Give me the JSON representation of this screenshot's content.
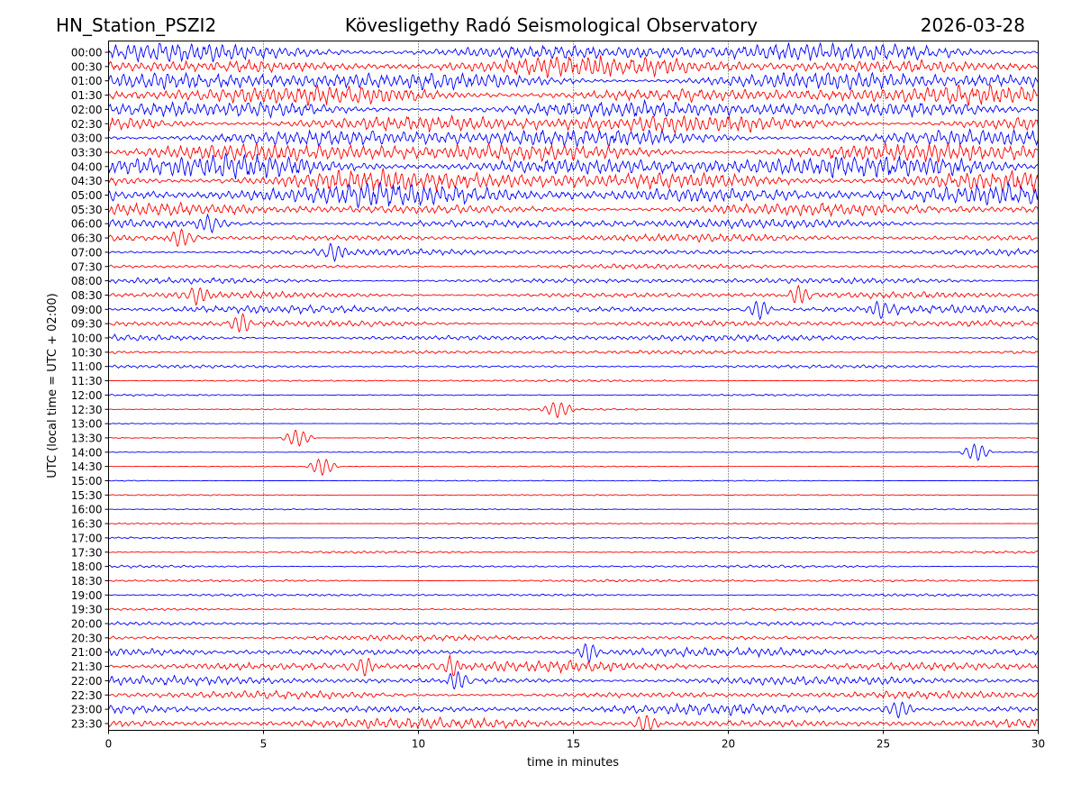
{
  "header": {
    "station": "HN_Station_PSZI2",
    "observatory": "Kövesligethy Radó Seismological Observatory",
    "date": "2026-03-28"
  },
  "chart_data": {
    "type": "line",
    "title": "Kövesligethy Radó Seismological Observatory",
    "xlabel": "time in minutes",
    "ylabel": "UTC (local time = UTC + 02:00)",
    "xlim": [
      0,
      30
    ],
    "x_ticks": [
      "0",
      "5",
      "10",
      "15",
      "20",
      "25",
      "30"
    ],
    "x_tick_values": [
      0,
      5,
      10,
      15,
      20,
      25,
      30
    ],
    "grid": "vertical dotted lines at each x tick",
    "row_labels": [
      "00:00",
      "00:30",
      "01:00",
      "01:30",
      "02:00",
      "02:30",
      "03:00",
      "03:30",
      "04:00",
      "04:30",
      "05:00",
      "05:30",
      "06:00",
      "06:30",
      "07:00",
      "07:30",
      "08:00",
      "08:30",
      "09:00",
      "09:30",
      "10:00",
      "10:30",
      "11:00",
      "11:30",
      "12:00",
      "12:30",
      "13:00",
      "13:30",
      "14:00",
      "14:30",
      "15:00",
      "15:30",
      "16:00",
      "16:30",
      "17:00",
      "17:30",
      "18:00",
      "18:30",
      "19:00",
      "19:30",
      "20:00",
      "20:30",
      "21:00",
      "21:30",
      "22:00",
      "22:30",
      "23:00",
      "23:30"
    ],
    "row_colors": [
      "#0000ff",
      "#ff0000"
    ],
    "relative_amplitude": [
      0.85,
      0.9,
      0.85,
      0.85,
      0.8,
      0.85,
      0.85,
      0.9,
      1.0,
      1.0,
      1.0,
      0.55,
      0.45,
      0.35,
      0.3,
      0.22,
      0.28,
      0.3,
      0.35,
      0.3,
      0.3,
      0.18,
      0.15,
      0.1,
      0.08,
      0.08,
      0.06,
      0.06,
      0.05,
      0.05,
      0.05,
      0.06,
      0.06,
      0.07,
      0.08,
      0.1,
      0.12,
      0.12,
      0.12,
      0.1,
      0.15,
      0.25,
      0.4,
      0.5,
      0.4,
      0.35,
      0.45,
      0.5
    ],
    "events": [
      {
        "row": "06:00",
        "minute": 3.3
      },
      {
        "row": "06:30",
        "minute": 2.4
      },
      {
        "row": "07:00",
        "minute": 7.2
      },
      {
        "row": "08:30",
        "minute": 2.8
      },
      {
        "row": "08:30",
        "minute": 22.3
      },
      {
        "row": "09:00",
        "minute": 21.0
      },
      {
        "row": "09:00",
        "minute": 25.0
      },
      {
        "row": "09:30",
        "minute": 4.3
      },
      {
        "row": "12:30",
        "minute": 14.5
      },
      {
        "row": "13:30",
        "minute": 6.1
      },
      {
        "row": "14:00",
        "minute": 28.0
      },
      {
        "row": "14:30",
        "minute": 6.9
      },
      {
        "row": "21:00",
        "minute": 15.5
      },
      {
        "row": "21:30",
        "minute": 8.2
      },
      {
        "row": "21:30",
        "minute": 11.0
      },
      {
        "row": "22:00",
        "minute": 11.3
      },
      {
        "row": "23:00",
        "minute": 25.5
      },
      {
        "row": "23:30",
        "minute": 17.3
      }
    ]
  }
}
